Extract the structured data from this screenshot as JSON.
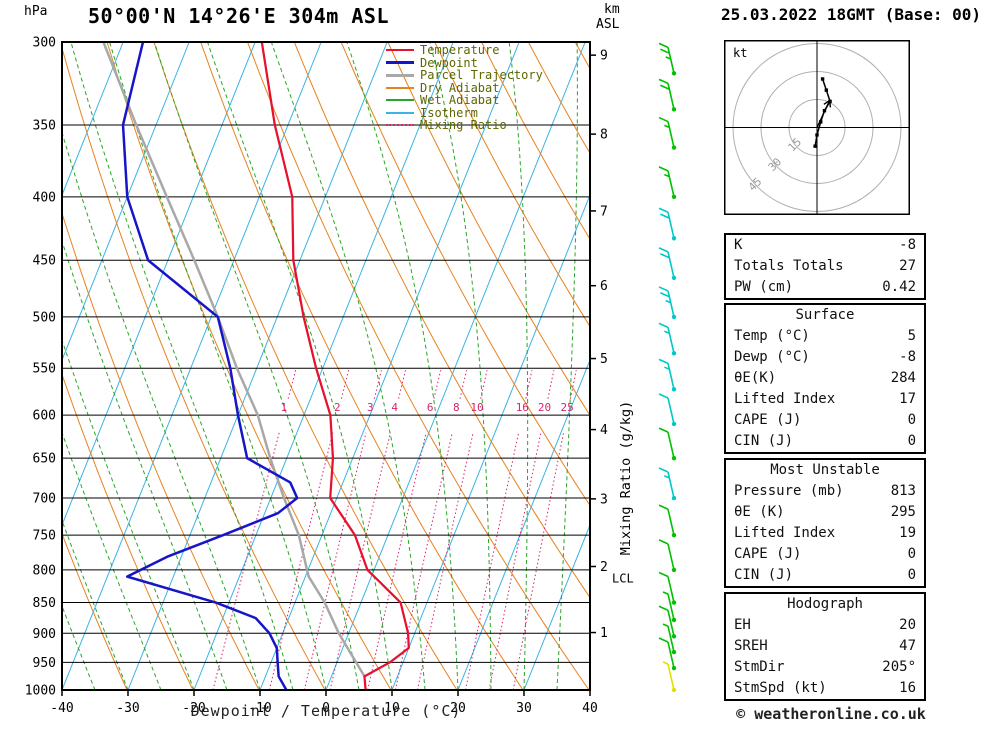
{
  "header": {
    "station_title": "50°00'N 14°26'E 304m ASL",
    "datetime": "25.03.2022 18GMT (Base: 00)"
  },
  "footer": {
    "copyright": "© weatheronline.co.uk"
  },
  "axes": {
    "pressure_unit": "hPa",
    "height_unit_line1": "km",
    "height_unit_line2": "ASL",
    "x_label": "Dewpoint / Temperature (°C)",
    "right_label": "Mixing Ratio (g/kg)",
    "lcl_label": "LCL",
    "lcl_pressure": 813,
    "pressure_ticks": [
      300,
      350,
      400,
      450,
      500,
      550,
      600,
      650,
      700,
      750,
      800,
      850,
      900,
      950,
      1000
    ],
    "temp_ticks": [
      -40,
      -30,
      -20,
      -10,
      0,
      10,
      20,
      30,
      40
    ],
    "height_ticks_km": [
      1,
      2,
      3,
      4,
      5,
      6,
      7,
      8,
      9
    ]
  },
  "legend_text_color": "#5c6600",
  "legend": [
    {
      "label": "Temperature",
      "color": "#e8112d",
      "width": 2,
      "swatch_style": "solid"
    },
    {
      "label": "Dewpoint",
      "color": "#1616c8",
      "width": 3,
      "swatch_style": "solid"
    },
    {
      "label": "Parcel Trajectory",
      "color": "#a8a8a8",
      "width": 3,
      "swatch_style": "solid"
    },
    {
      "label": "Dry Adiabat",
      "color": "#e8821e",
      "width": 2,
      "swatch_style": "solid"
    },
    {
      "label": "Wet Adiabat",
      "color": "#2aa52a",
      "width": 2,
      "swatch_style": "solid"
    },
    {
      "label": "Isotherm",
      "color": "#3cb4e6",
      "width": 2,
      "swatch_style": "solid"
    },
    {
      "label": "Mixing Ratio",
      "color": "#d6246e",
      "width": 2,
      "swatch_style": "dotted"
    }
  ],
  "chart_data": {
    "type": "skew-t-log-p",
    "pressure_range": [
      300,
      1000
    ],
    "temp_range_at_1000hPa": [
      -40,
      40
    ],
    "skew": 0.4,
    "isotherm_step_c": 10,
    "dry_adiabat_step_c": 10,
    "wet_adiabat_step_c": 5,
    "grid_on": true,
    "colors": {
      "temperature": "#e8112d",
      "dewpoint": "#1616c8",
      "parcel": "#a8a8a8",
      "dry_adiabat": "#e8821e",
      "wet_adiabat": "#2aa52a",
      "isotherm": "#3cb4e6",
      "mixing_ratio": "#d6246e",
      "pressure_grid": "#000000"
    },
    "mixing_ratio_lines_gkg": [
      1,
      2,
      3,
      4,
      6,
      8,
      10,
      16,
      20,
      25
    ],
    "temperature_curve_p_T": [
      [
        1000,
        6
      ],
      [
        975,
        5
      ],
      [
        950,
        8
      ],
      [
        925,
        10
      ],
      [
        900,
        9
      ],
      [
        850,
        6
      ],
      [
        800,
        -1
      ],
      [
        750,
        -5
      ],
      [
        700,
        -11
      ],
      [
        650,
        -13
      ],
      [
        600,
        -16
      ],
      [
        550,
        -21
      ],
      [
        500,
        -26
      ],
      [
        450,
        -31
      ],
      [
        400,
        -35
      ],
      [
        350,
        -42
      ],
      [
        300,
        -49
      ]
    ],
    "dewpoint_curve_p_T": [
      [
        1000,
        -6
      ],
      [
        975,
        -8
      ],
      [
        950,
        -9
      ],
      [
        925,
        -10
      ],
      [
        900,
        -12
      ],
      [
        875,
        -15
      ],
      [
        850,
        -22
      ],
      [
        810,
        -37
      ],
      [
        780,
        -32
      ],
      [
        750,
        -25
      ],
      [
        720,
        -18
      ],
      [
        700,
        -16
      ],
      [
        680,
        -18
      ],
      [
        650,
        -26
      ],
      [
        600,
        -30
      ],
      [
        550,
        -34
      ],
      [
        500,
        -39
      ],
      [
        450,
        -53
      ],
      [
        400,
        -60
      ],
      [
        350,
        -65
      ],
      [
        300,
        -67
      ]
    ],
    "parcel_curve_p_T": [
      [
        975,
        5
      ],
      [
        900,
        -1.5
      ],
      [
        850,
        -5.5
      ],
      [
        810,
        -9.5
      ],
      [
        750,
        -13.5
      ],
      [
        700,
        -18
      ],
      [
        650,
        -22.5
      ],
      [
        600,
        -27
      ],
      [
        550,
        -33
      ],
      [
        500,
        -39
      ],
      [
        450,
        -46
      ],
      [
        400,
        -54
      ],
      [
        350,
        -63
      ],
      [
        300,
        -73
      ]
    ]
  },
  "hodograph": {
    "unit_label": "kt",
    "rings_kt": [
      15,
      30,
      45
    ],
    "trace_uv_kt": [
      [
        -1,
        -10
      ],
      [
        0,
        -4
      ],
      [
        2,
        3
      ],
      [
        4,
        9
      ],
      [
        7,
        14
      ],
      [
        5,
        20
      ],
      [
        3,
        26
      ]
    ],
    "storm_motion_uv_kt": [
      6.8,
      14.5
    ]
  },
  "wind_barbs": [
    {
      "pressure": 318,
      "speed_kt": 25,
      "color": "#00c000"
    },
    {
      "pressure": 340,
      "speed_kt": 20,
      "color": "#00c000"
    },
    {
      "pressure": 365,
      "speed_kt": 15,
      "color": "#00c000"
    },
    {
      "pressure": 400,
      "speed_kt": 15,
      "color": "#00c000"
    },
    {
      "pressure": 432,
      "speed_kt": 20,
      "color": "#00c8c8"
    },
    {
      "pressure": 465,
      "speed_kt": 20,
      "color": "#00c8c8"
    },
    {
      "pressure": 500,
      "speed_kt": 25,
      "color": "#00c8c8"
    },
    {
      "pressure": 535,
      "speed_kt": 15,
      "color": "#00c8c8"
    },
    {
      "pressure": 572,
      "speed_kt": 15,
      "color": "#00c8c8"
    },
    {
      "pressure": 610,
      "speed_kt": 10,
      "color": "#00c8c8"
    },
    {
      "pressure": 650,
      "speed_kt": 10,
      "color": "#00c000"
    },
    {
      "pressure": 700,
      "speed_kt": 15,
      "color": "#00c8c8"
    },
    {
      "pressure": 750,
      "speed_kt": 10,
      "color": "#00c000"
    },
    {
      "pressure": 800,
      "speed_kt": 10,
      "color": "#00c000"
    },
    {
      "pressure": 850,
      "speed_kt": 10,
      "color": "#00c000"
    },
    {
      "pressure": 878,
      "speed_kt": 5,
      "color": "#00c000"
    },
    {
      "pressure": 905,
      "speed_kt": 10,
      "color": "#00c000"
    },
    {
      "pressure": 932,
      "speed_kt": 5,
      "color": "#00c000"
    },
    {
      "pressure": 960,
      "speed_kt": 10,
      "color": "#00c000"
    },
    {
      "pressure": 1000,
      "speed_kt": 5,
      "color": "#e0e000"
    }
  ],
  "stats": {
    "indices": {
      "rows": [
        {
          "label": "K",
          "value": "-8"
        },
        {
          "label": "Totals Totals",
          "value": "27"
        },
        {
          "label": "PW (cm)",
          "value": "0.42"
        }
      ]
    },
    "surface": {
      "title": "Surface",
      "rows": [
        {
          "label": "Temp (°C)",
          "value": "5"
        },
        {
          "label": "Dewp (°C)",
          "value": "-8"
        },
        {
          "label": "θE(K)",
          "value": "284"
        },
        {
          "label": "Lifted Index",
          "value": "17"
        },
        {
          "label": "CAPE (J)",
          "value": "0"
        },
        {
          "label": "CIN (J)",
          "value": "0"
        }
      ]
    },
    "most_unstable": {
      "title": "Most Unstable",
      "rows": [
        {
          "label": "Pressure (mb)",
          "value": "813"
        },
        {
          "label": "θE (K)",
          "value": "295"
        },
        {
          "label": "Lifted Index",
          "value": "19"
        },
        {
          "label": "CAPE (J)",
          "value": "0"
        },
        {
          "label": "CIN (J)",
          "value": "0"
        }
      ]
    },
    "hodograph_stats": {
      "title": "Hodograph",
      "rows": [
        {
          "label": "EH",
          "value": "20"
        },
        {
          "label": "SREH",
          "value": "47"
        },
        {
          "label": "StmDir",
          "value": "205°"
        },
        {
          "label": "StmSpd (kt)",
          "value": "16"
        }
      ]
    }
  }
}
